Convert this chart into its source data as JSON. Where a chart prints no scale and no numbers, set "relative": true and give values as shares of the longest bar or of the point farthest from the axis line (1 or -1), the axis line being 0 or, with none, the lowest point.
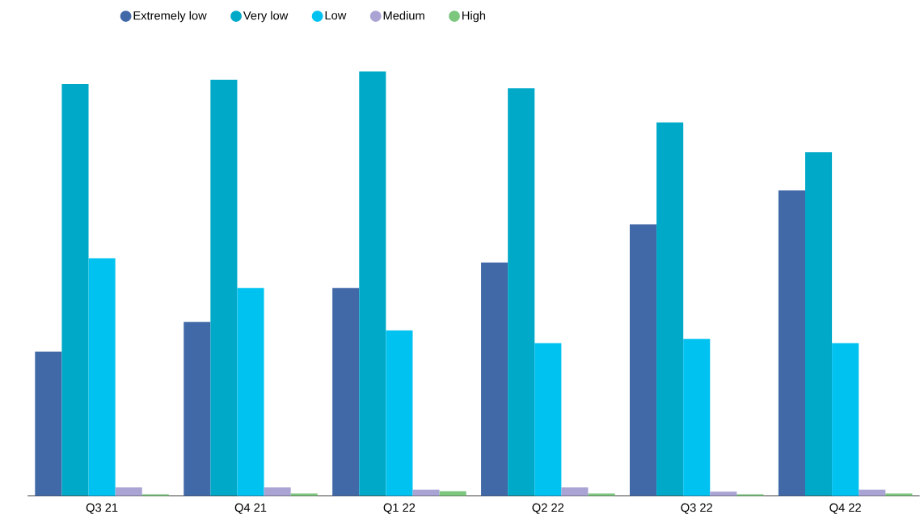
{
  "chart_data": {
    "type": "bar",
    "relative": true,
    "legend": "top left",
    "categories": [
      "Q3 21",
      "Q4 21",
      "Q1 22",
      "Q2 22",
      "Q3 22",
      "Q4 22"
    ],
    "series": [
      {
        "name": "Extremely low",
        "color": "#4169a8",
        "values": [
          0.34,
          0.41,
          0.49,
          0.55,
          0.64,
          0.72
        ]
      },
      {
        "name": "Very low",
        "color": "#00a9c8",
        "values": [
          0.97,
          0.98,
          1,
          0.96,
          0.88,
          0.81
        ]
      },
      {
        "name": "Low",
        "color": "#00c2f0",
        "values": [
          0.56,
          0.49,
          0.39,
          0.36,
          0.37,
          0.36
        ]
      },
      {
        "name": "Medium",
        "color": "#a9a4d4",
        "values": [
          0.02,
          0.02,
          0.015,
          0.02,
          0.01,
          0.015
        ]
      },
      {
        "name": "High",
        "color": "#7cc67e",
        "values": [
          0.004,
          0.006,
          0.011,
          0.006,
          0.004,
          0.006
        ]
      }
    ]
  }
}
